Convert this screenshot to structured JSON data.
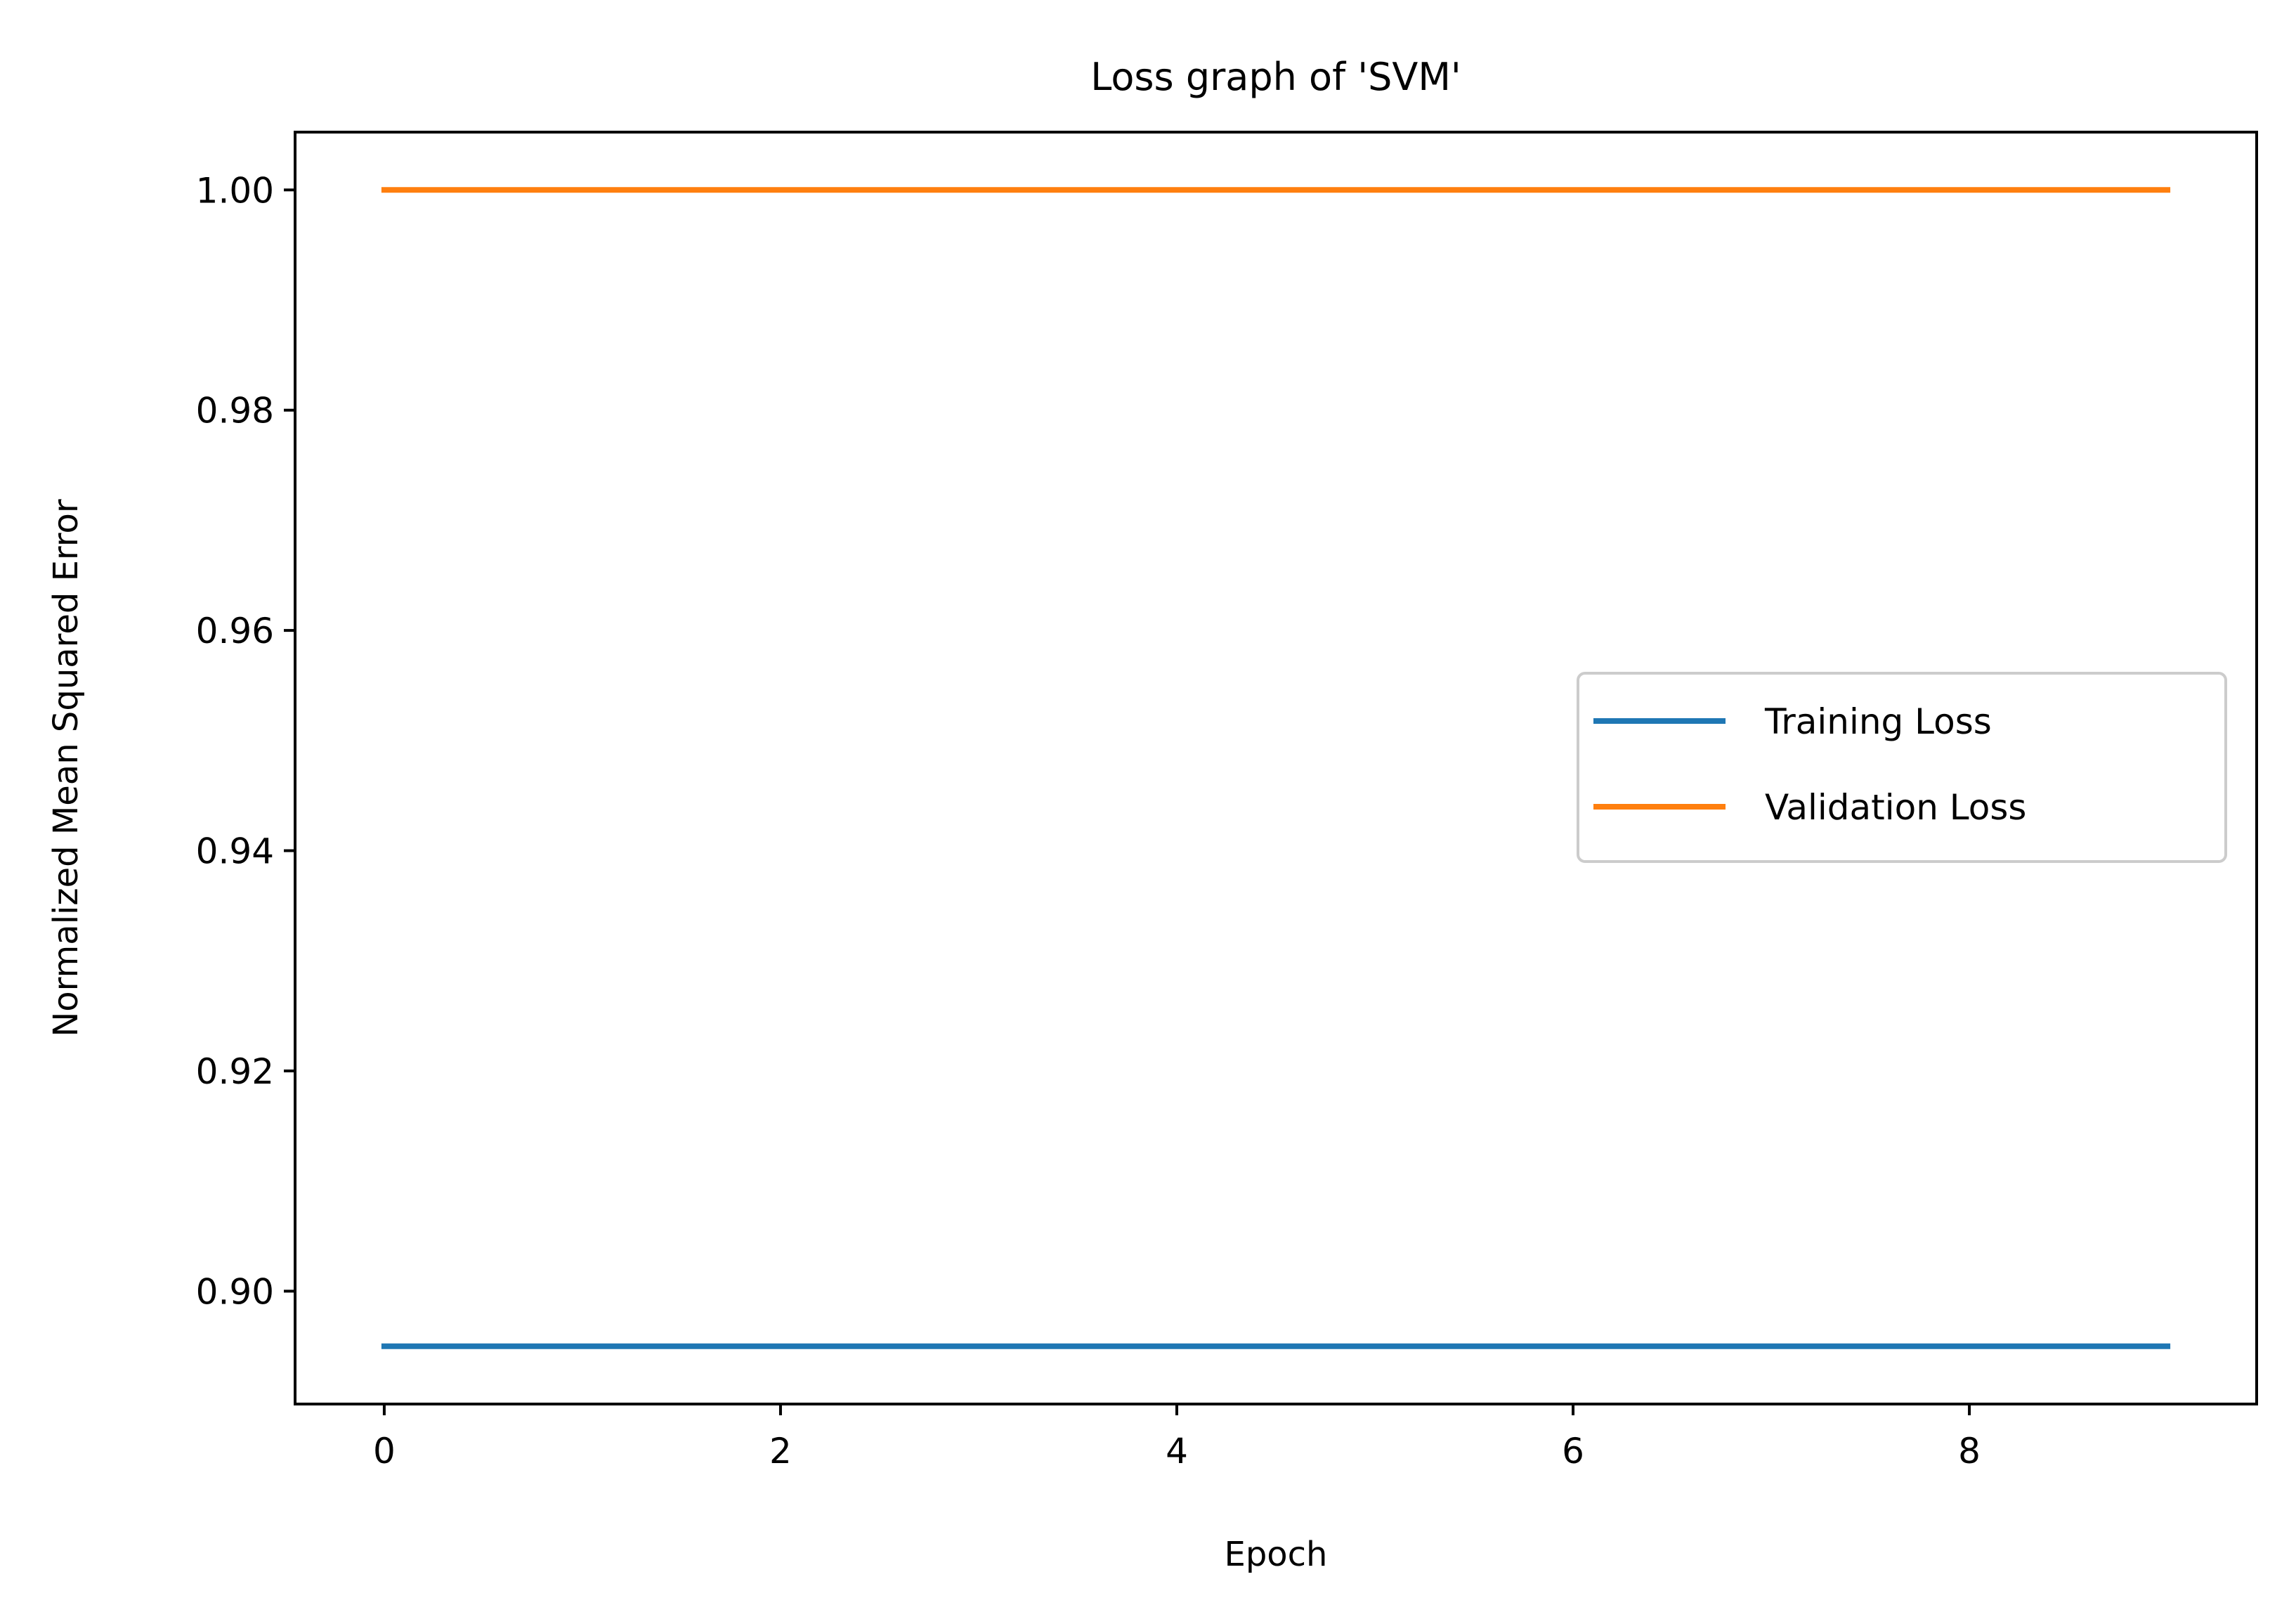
{
  "chart_data": {
    "type": "line",
    "title": "Loss graph of 'SVM'",
    "xlabel": "Epoch",
    "ylabel": "Normalized Mean Squared Error",
    "x": [
      0,
      1,
      2,
      3,
      4,
      5,
      6,
      7,
      8,
      9
    ],
    "series": [
      {
        "name": "Training Loss",
        "color": "#1f77b4",
        "values": [
          0.895,
          0.895,
          0.895,
          0.895,
          0.895,
          0.895,
          0.895,
          0.895,
          0.895,
          0.895
        ]
      },
      {
        "name": "Validation Loss",
        "color": "#ff7f0e",
        "values": [
          1.0,
          1.0,
          1.0,
          1.0,
          1.0,
          1.0,
          1.0,
          1.0,
          1.0,
          1.0
        ]
      }
    ],
    "xlim": [
      -0.45,
      9.45
    ],
    "ylim": [
      0.88975,
      1.00525
    ],
    "xticks": [
      0,
      2,
      4,
      6,
      8
    ],
    "xtick_labels": [
      "0",
      "2",
      "4",
      "6",
      "8"
    ],
    "yticks": [
      0.9,
      0.92,
      0.94,
      0.96,
      0.98,
      1.0
    ],
    "ytick_labels": [
      "0.90",
      "0.92",
      "0.94",
      "0.96",
      "0.98",
      "1.00"
    ],
    "grid": false,
    "legend_position": "center-right"
  }
}
